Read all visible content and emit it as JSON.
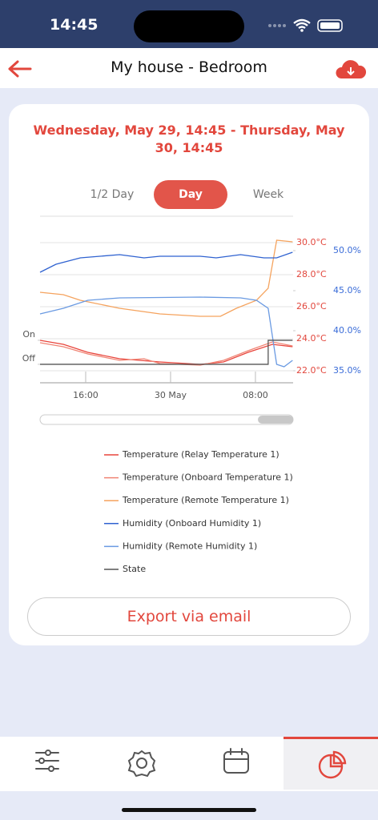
{
  "status_bar": {
    "time": "14:45"
  },
  "header": {
    "title": "My house - Bedroom"
  },
  "period": "Wednesday, May 29, 14:45 - Thursday, May 30, 14:45",
  "tabs": [
    "1/2 Day",
    "Day",
    "Week"
  ],
  "active_tab": 1,
  "export_button": "Export via email",
  "chart_data": {
    "type": "line",
    "xlim": [
      11.7,
      35.55
    ],
    "xticks": [
      {
        "value": 16,
        "label": "16:00"
      },
      {
        "value": 24,
        "label": "30 May"
      },
      {
        "value": 32,
        "label": "08:00"
      }
    ],
    "ylim": [
      21.25,
      31.65
    ],
    "yticks": [
      {
        "value": 22,
        "label": "22.0°C"
      },
      {
        "value": 24,
        "label": "24.0°C"
      },
      {
        "value": 26,
        "label": "26.0°C"
      },
      {
        "value": 28,
        "label": "28.0°C"
      },
      {
        "value": 30,
        "label": "30.0°C"
      }
    ],
    "y2lim": [
      33.5,
      54.3
    ],
    "y2ticks": [
      {
        "value": 35,
        "label": "35.0%"
      },
      {
        "value": 40,
        "label": "40.0%"
      },
      {
        "value": 45,
        "label": "45.0%"
      },
      {
        "value": 50,
        "label": "50.0%"
      }
    ],
    "y3lim": [
      -0.77,
      6.17
    ],
    "y3ticks": [
      {
        "value": 0,
        "label": "Off"
      },
      {
        "value": 1,
        "label": "On"
      }
    ],
    "grid": true,
    "series": [
      {
        "name": "Temperature (Relay Temperature 1)",
        "color": "#e8453c",
        "axis": "y",
        "x": [
          11.7,
          13.9,
          16.2,
          19.2,
          23.0,
          26.8,
          29.0,
          31.3,
          33.6,
          35.5
        ],
        "values": [
          23.9,
          23.65,
          23.15,
          22.75,
          22.55,
          22.4,
          22.55,
          23.15,
          23.65,
          23.5
        ]
      },
      {
        "name": "Temperature (Onboard Temperature 1)",
        "color": "#f08474",
        "axis": "y",
        "x": [
          11.7,
          13.9,
          16.2,
          19.2,
          21.5,
          23.0,
          26.8,
          29.0,
          31.3,
          33.6,
          35.5
        ],
        "values": [
          23.75,
          23.5,
          23.05,
          22.65,
          22.75,
          22.45,
          22.35,
          22.65,
          23.25,
          23.8,
          23.55
        ]
      },
      {
        "name": "Temperature (Remote Temperature 1)",
        "color": "#f5a35e",
        "axis": "y",
        "x": [
          11.7,
          13.9,
          15.5,
          19.2,
          23.0,
          26.8,
          28.7,
          30.2,
          32.1,
          33.2,
          33.6,
          34.0,
          35.5
        ],
        "values": [
          26.9,
          26.75,
          26.4,
          25.9,
          25.55,
          25.4,
          25.4,
          25.9,
          26.4,
          27.15,
          28.65,
          30.15,
          30.05
        ]
      },
      {
        "name": "Humidity (Onboard Humidity 1)",
        "color": "#2f62d0",
        "axis": "y2",
        "x": [
          11.7,
          13.2,
          15.5,
          19.2,
          21.5,
          23.0,
          26.8,
          28.3,
          30.6,
          32.8,
          34.0,
          35.5
        ],
        "values": [
          47.3,
          48.3,
          49.1,
          49.5,
          49.1,
          49.3,
          49.3,
          49.1,
          49.5,
          49.1,
          49.1,
          49.8
        ]
      },
      {
        "name": "Humidity (Remote Humidity 1)",
        "color": "#6a9ae2",
        "axis": "y2",
        "x": [
          11.7,
          13.9,
          16.2,
          19.2,
          26.8,
          30.6,
          32.1,
          33.2,
          33.6,
          34.0,
          34.7,
          35.5
        ],
        "values": [
          42.1,
          42.8,
          43.8,
          44.1,
          44.2,
          44.1,
          43.8,
          42.8,
          39.3,
          35.8,
          35.5,
          36.3
        ]
      },
      {
        "name": "State",
        "color": "#555555",
        "axis": "y3",
        "x": [
          11.7,
          33.2,
          33.2,
          35.5
        ],
        "values": [
          0,
          0,
          1,
          1
        ]
      }
    ]
  }
}
